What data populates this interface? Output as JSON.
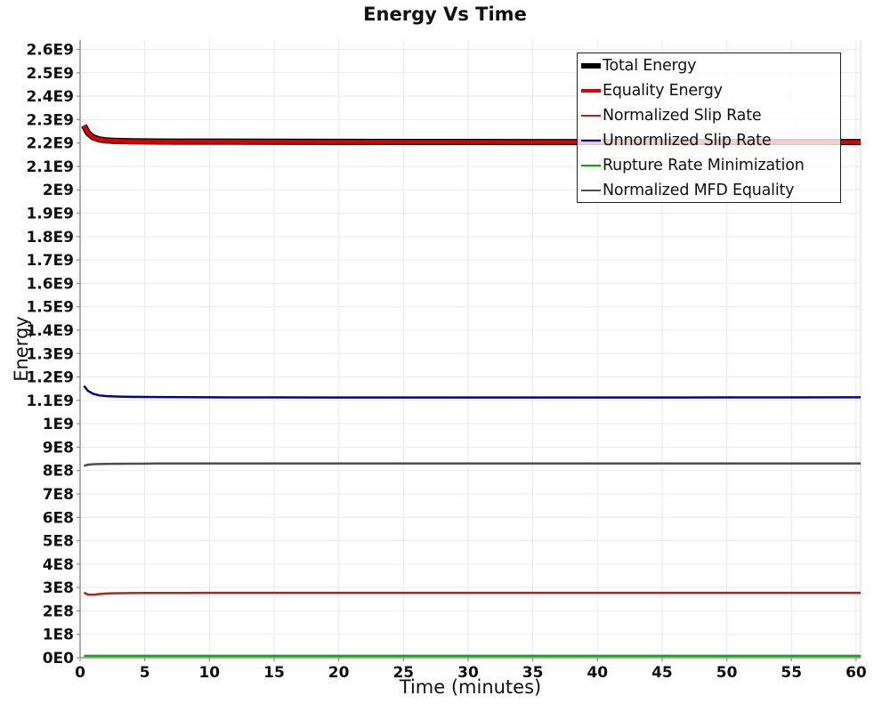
{
  "title": "Energy Vs Time",
  "colors": {
    "grid": "#e9e9e9",
    "axis": "#8c8c8c",
    "plot_right_border": "#d9d9d9",
    "legend_border": "#222222",
    "text": "#111111"
  },
  "chart_data": {
    "type": "line",
    "title": "Energy Vs Time",
    "xlabel": "Time (minutes)",
    "ylabel": "Energy",
    "xlim": [
      0,
      60.35
    ],
    "ylim": [
      0,
      2640000000
    ],
    "grid": true,
    "legend_position": "top-right-inside",
    "x_ticks": [
      0,
      5,
      10,
      15,
      20,
      25,
      30,
      35,
      40,
      45,
      50,
      55,
      60
    ],
    "y_tick_step": 100000000,
    "y_tick_labels": [
      "0E0",
      "1E8",
      "2E8",
      "3E8",
      "4E8",
      "5E8",
      "6E8",
      "7E8",
      "8E8",
      "9E8",
      "1E9",
      "1.1E9",
      "1.2E9",
      "1.3E9",
      "1.4E9",
      "1.5E9",
      "1.6E9",
      "1.7E9",
      "1.8E9",
      "1.9E9",
      "2E9",
      "2.1E9",
      "2.2E9",
      "2.3E9",
      "2.4E9",
      "2.5E9",
      "2.6E9"
    ],
    "x": [
      0.3,
      0.6,
      1,
      1.5,
      2,
      2.5,
      3,
      4,
      5,
      6,
      8,
      10,
      15,
      20,
      25,
      30,
      35,
      40,
      45,
      50,
      55,
      60.35
    ],
    "series": [
      {
        "name": "Total Energy",
        "color": "#000000",
        "line_width": 7,
        "y": [
          2275000000.0,
          2243000000.0,
          2224000000.0,
          2215000000.0,
          2211000000.0,
          2209500000.0,
          2208500000.0,
          2207500000.0,
          2207000000.0,
          2206500000.0,
          2206000000.0,
          2205800000.0,
          2205200000.0,
          2204800000.0,
          2204500000.0,
          2204300000.0,
          2204200000.0,
          2204000000.0,
          2204000000.0,
          2204000000.0,
          2204000000.0,
          2204000000.0
        ]
      },
      {
        "name": "Equality Energy",
        "color": "#dd0000",
        "line_width": 4.5,
        "y": [
          2275000000.0,
          2243000000.0,
          2224000000.0,
          2215000000.0,
          2211000000.0,
          2209500000.0,
          2208500000.0,
          2207500000.0,
          2207000000.0,
          2206500000.0,
          2206000000.0,
          2205800000.0,
          2205200000.0,
          2204800000.0,
          2204500000.0,
          2204300000.0,
          2204200000.0,
          2204000000.0,
          2204000000.0,
          2204000000.0,
          2204000000.0,
          2204000000.0
        ]
      },
      {
        "name": "Normalized Slip Rate",
        "color": "#b22222",
        "line_width": 2.5,
        "y": [
          278000000.0,
          270000000.0,
          269000000.0,
          272000000.0,
          274500000.0,
          275500000.0,
          276000000.0,
          276500000.0,
          276700000.0,
          276800000.0,
          276900000.0,
          277000000.0,
          277000000.0,
          277000000.0,
          277000000.0,
          277000000.0,
          277000000.0,
          277000000.0,
          277000000.0,
          277000000.0,
          277000000.0,
          277000000.0
        ]
      },
      {
        "name": "Unnormlized Slip Rate",
        "color": "#0000a8",
        "line_width": 2.5,
        "y": [
          1162000000.0,
          1141000000.0,
          1128000000.0,
          1121000000.0,
          1118500000.0,
          1117000000.0,
          1116000000.0,
          1115000000.0,
          1114500000.0,
          1114000000.0,
          1113500000.0,
          1113000000.0,
          1112500000.0,
          1112200000.0,
          1112000000.0,
          1112000000.0,
          1112000000.0,
          1112000000.0,
          1112200000.0,
          1112500000.0,
          1112800000.0,
          1113000000.0
        ]
      },
      {
        "name": "Rupture Rate Minimization",
        "color": "#00b000",
        "line_width": 2.5,
        "y": [
          8000000.0,
          8000000.0,
          8000000.0,
          8000000.0,
          8000000.0,
          8000000.0,
          8000000.0,
          8000000.0,
          8000000.0,
          8000000.0,
          8000000.0,
          8000000.0,
          8000000.0,
          8000000.0,
          8000000.0,
          8000000.0,
          8000000.0,
          8000000.0,
          8000000.0,
          8000000.0,
          8000000.0,
          8000000.0
        ]
      },
      {
        "name": "Normalized MFD Equality",
        "color": "#4d4d4d",
        "line_width": 2.5,
        "y": [
          820000000.0,
          825000000.0,
          827000000.0,
          828000000.0,
          828500000.0,
          829000000.0,
          829000000.0,
          829500000.0,
          829500000.0,
          830000000.0,
          830000000.0,
          830000000.0,
          830000000.0,
          830000000.0,
          830000000.0,
          830000000.0,
          830000000.0,
          830000000.0,
          830000000.0,
          830000000.0,
          830000000.0,
          830000000.0
        ]
      }
    ]
  }
}
